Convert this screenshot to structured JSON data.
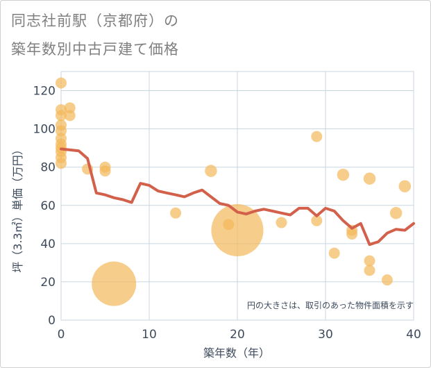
{
  "title_lines": [
    "同志社前駅（京都府）の",
    "築年数別中古戸建て価格"
  ],
  "colors": {
    "bubble": "#f4b85a",
    "line": "#d2604a",
    "grid": "#c8d6e0",
    "plot_bg": "#ffffff",
    "axis_text": "#3d4a5c"
  },
  "chart_data": {
    "type": "scatter",
    "xlabel": "築年数（年）",
    "ylabel": "坪（3.3㎡）単価（万円）",
    "xlim": [
      0,
      40
    ],
    "ylim": [
      0,
      130
    ],
    "x_ticks": [
      "0",
      "10",
      "20",
      "30",
      "40"
    ],
    "y_ticks": [
      "0",
      "20",
      "40",
      "60",
      "80",
      "100",
      "120"
    ],
    "x_tick_values": [
      0,
      10,
      20,
      30,
      40
    ],
    "y_tick_values": [
      0,
      20,
      40,
      60,
      80,
      100,
      120
    ],
    "grid": true,
    "note": "円の大きさは、取引のあった物件面積を示す",
    "bubbles": [
      {
        "x": 0,
        "y": 124,
        "size": 1
      },
      {
        "x": 0,
        "y": 110,
        "size": 1
      },
      {
        "x": 0,
        "y": 107,
        "size": 1
      },
      {
        "x": 0,
        "y": 102,
        "size": 1
      },
      {
        "x": 0,
        "y": 99,
        "size": 1
      },
      {
        "x": 0,
        "y": 95,
        "size": 1
      },
      {
        "x": 0,
        "y": 92,
        "size": 1
      },
      {
        "x": 0,
        "y": 90,
        "size": 1
      },
      {
        "x": 0,
        "y": 88,
        "size": 1
      },
      {
        "x": 0,
        "y": 85,
        "size": 1
      },
      {
        "x": 0,
        "y": 82,
        "size": 1
      },
      {
        "x": 1,
        "y": 111,
        "size": 1
      },
      {
        "x": 1,
        "y": 107,
        "size": 1
      },
      {
        "x": 3,
        "y": 79,
        "size": 1
      },
      {
        "x": 5,
        "y": 80,
        "size": 1
      },
      {
        "x": 5,
        "y": 78,
        "size": 1
      },
      {
        "x": 6,
        "y": 19,
        "size": 16
      },
      {
        "x": 13,
        "y": 56,
        "size": 1
      },
      {
        "x": 17,
        "y": 78,
        "size": 1.2
      },
      {
        "x": 19,
        "y": 50,
        "size": 1
      },
      {
        "x": 20,
        "y": 47,
        "size": 22
      },
      {
        "x": 25,
        "y": 51,
        "size": 1
      },
      {
        "x": 29,
        "y": 96,
        "size": 1
      },
      {
        "x": 29,
        "y": 52,
        "size": 1
      },
      {
        "x": 31,
        "y": 35,
        "size": 1
      },
      {
        "x": 32,
        "y": 76,
        "size": 1.2
      },
      {
        "x": 33,
        "y": 47,
        "size": 1
      },
      {
        "x": 33,
        "y": 45,
        "size": 1
      },
      {
        "x": 35,
        "y": 74,
        "size": 1.2
      },
      {
        "x": 35,
        "y": 31,
        "size": 1
      },
      {
        "x": 35,
        "y": 26,
        "size": 1
      },
      {
        "x": 37,
        "y": 21,
        "size": 1
      },
      {
        "x": 38,
        "y": 56,
        "size": 1.2
      },
      {
        "x": 39,
        "y": 70,
        "size": 1.2
      }
    ],
    "trend_line": [
      [
        0,
        89.5
      ],
      [
        1,
        89
      ],
      [
        2,
        88.5
      ],
      [
        3,
        84.5
      ],
      [
        4,
        66.5
      ],
      [
        5,
        65.5
      ],
      [
        6,
        64
      ],
      [
        7,
        63
      ],
      [
        8,
        61.5
      ],
      [
        9,
        71.5
      ],
      [
        10,
        70.5
      ],
      [
        11,
        67.5
      ],
      [
        12,
        66.5
      ],
      [
        13,
        65.5
      ],
      [
        14,
        64.5
      ],
      [
        15,
        66.5
      ],
      [
        16,
        68
      ],
      [
        17,
        64.5
      ],
      [
        18,
        61
      ],
      [
        19,
        60
      ],
      [
        20,
        56.5
      ],
      [
        21,
        55.5
      ],
      [
        22,
        57
      ],
      [
        23,
        58
      ],
      [
        24,
        57
      ],
      [
        25,
        56
      ],
      [
        26,
        55
      ],
      [
        27,
        58.5
      ],
      [
        28,
        58.5
      ],
      [
        29,
        54.5
      ],
      [
        30,
        58.5
      ],
      [
        31,
        57
      ],
      [
        32,
        52
      ],
      [
        33,
        48
      ],
      [
        34,
        50.5
      ],
      [
        35,
        39.5
      ],
      [
        36,
        41
      ],
      [
        37,
        45.5
      ],
      [
        38,
        47.5
      ],
      [
        39,
        47
      ],
      [
        40,
        50.5
      ]
    ]
  }
}
